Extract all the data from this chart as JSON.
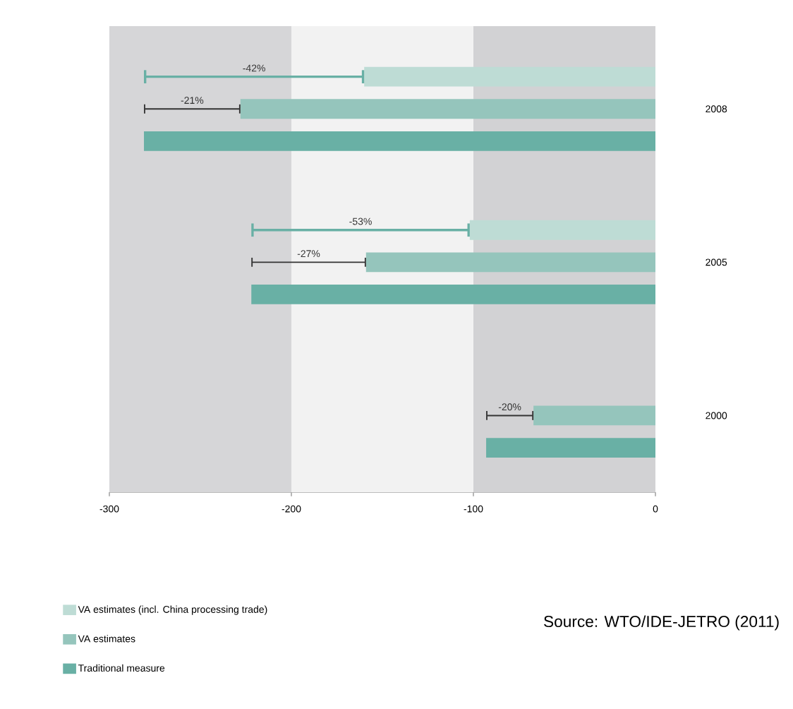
{
  "chart_data": {
    "type": "bar",
    "orientation": "horizontal",
    "categories": [
      "2008",
      "2005",
      "2000"
    ],
    "series": [
      {
        "name": "VA estimates (incl. China processing trade)",
        "color": "#bedcd5",
        "values": [
          -160,
          -102,
          null
        ],
        "errors": [
          [
            -281,
            -160
          ],
          [
            -222,
            -102
          ],
          null
        ]
      },
      {
        "name": "VA estimates",
        "color": "#95c5bc",
        "values": [
          -228,
          -159,
          -67
        ],
        "errors": [
          [
            -281,
            -228
          ],
          [
            -222,
            -159
          ],
          [
            -93,
            -67
          ]
        ]
      },
      {
        "name": "Traditional measure",
        "color": "#69b0a5",
        "values": [
          -281,
          -222,
          -93
        ]
      }
    ],
    "xlim": [
      -300,
      0
    ],
    "xticks": [
      -300,
      -200,
      -100,
      0
    ],
    "bands": [
      {
        "axis": "x",
        "from": -300,
        "to": -200,
        "color": "#d6d6d8"
      },
      {
        "axis": "x",
        "from": -200,
        "to": -100,
        "color": "#f2f2f2"
      },
      {
        "axis": "x",
        "from": -100,
        "to": 0,
        "color": "#d2d2d4"
      }
    ],
    "annotations": [
      "-42%",
      "-21%",
      "-53%",
      "-27%",
      "-20%",
      "Source: WTO/IDE-JETRO (2011)"
    ],
    "legend": "bottom left"
  }
}
